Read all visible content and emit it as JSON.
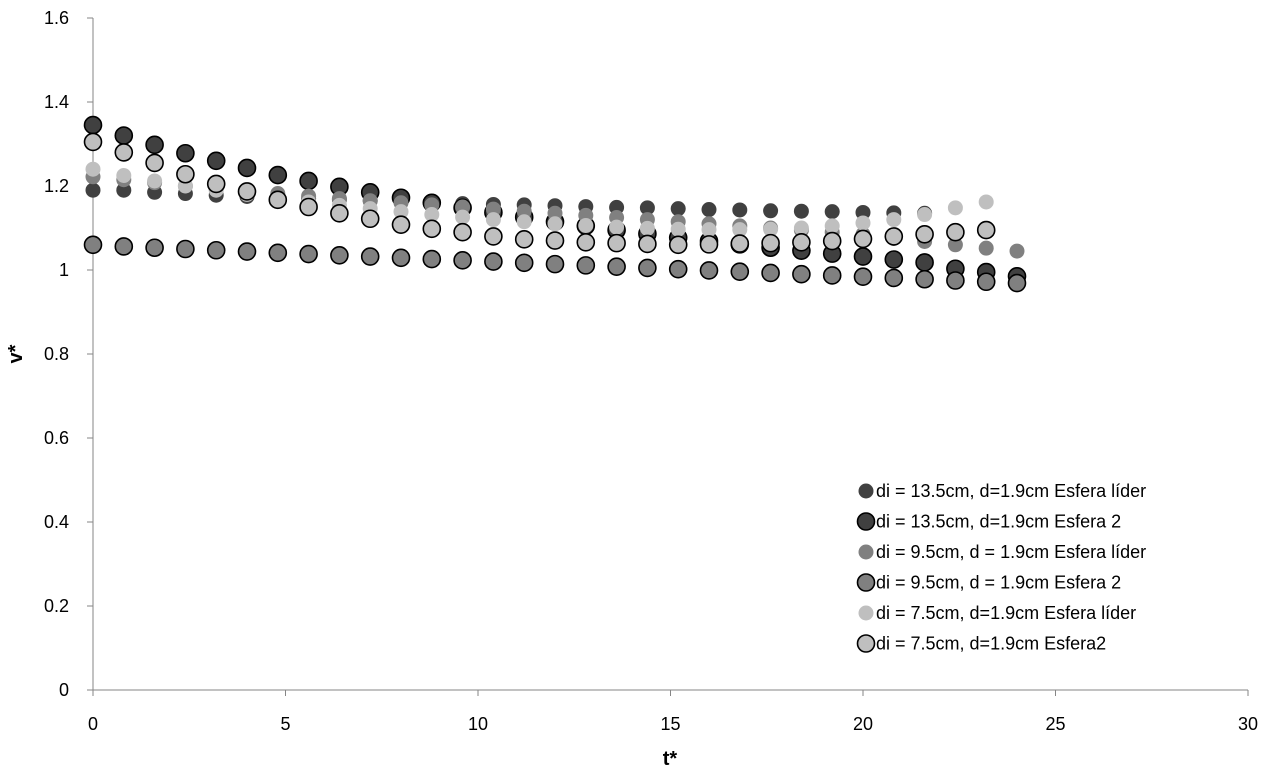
{
  "chart_data": {
    "type": "scatter",
    "xlabel": "t*",
    "ylabel": "v*",
    "xlim": [
      0,
      30
    ],
    "ylim": [
      0,
      1.6
    ],
    "xticks": [
      0,
      5,
      10,
      15,
      20,
      25,
      30
    ],
    "yticks": [
      0,
      0.2,
      0.4,
      0.6,
      0.8,
      1,
      1.2,
      1.4,
      1.6
    ],
    "ytick_labels": [
      "0",
      "0.2",
      "0.4",
      "0.6",
      "0.8",
      "1",
      "1.2",
      "1.4",
      "1.6"
    ],
    "grid": false,
    "legend_position": "bottom-right",
    "series": [
      {
        "name": "di = 13.5cm, d=1.9cm Esfera líder",
        "fill": "#404040",
        "outline": false,
        "points": [
          [
            0,
            1.19
          ],
          [
            0.8,
            1.19
          ],
          [
            1.6,
            1.185
          ],
          [
            2.4,
            1.182
          ],
          [
            3.2,
            1.178
          ],
          [
            4,
            1.175
          ],
          [
            4.8,
            1.172
          ],
          [
            5.6,
            1.17
          ],
          [
            6.4,
            1.168
          ],
          [
            7.2,
            1.165
          ],
          [
            8,
            1.163
          ],
          [
            8.8,
            1.16
          ],
          [
            9.6,
            1.158
          ],
          [
            10.4,
            1.156
          ],
          [
            11.2,
            1.155
          ],
          [
            12,
            1.153
          ],
          [
            12.8,
            1.151
          ],
          [
            13.6,
            1.149
          ],
          [
            14.4,
            1.148
          ],
          [
            15.2,
            1.146
          ],
          [
            16,
            1.144
          ],
          [
            16.8,
            1.143
          ],
          [
            17.6,
            1.141
          ],
          [
            18.4,
            1.14
          ],
          [
            19.2,
            1.139
          ],
          [
            20,
            1.137
          ],
          [
            20.8,
            1.136
          ],
          [
            21.6,
            1.135
          ]
        ]
      },
      {
        "name": "di = 13.5cm, d=1.9cm Esfera 2",
        "fill": "#404040",
        "outline": true,
        "points": [
          [
            0,
            1.345
          ],
          [
            0.8,
            1.32
          ],
          [
            1.6,
            1.298
          ],
          [
            2.4,
            1.278
          ],
          [
            3.2,
            1.26
          ],
          [
            4,
            1.243
          ],
          [
            4.8,
            1.226
          ],
          [
            5.6,
            1.212
          ],
          [
            6.4,
            1.198
          ],
          [
            7.2,
            1.185
          ],
          [
            8,
            1.172
          ],
          [
            8.8,
            1.16
          ],
          [
            9.6,
            1.148
          ],
          [
            10.4,
            1.137
          ],
          [
            11.2,
            1.126
          ],
          [
            12,
            1.115
          ],
          [
            12.8,
            1.105
          ],
          [
            13.6,
            1.095
          ],
          [
            14.4,
            1.086
          ],
          [
            15.2,
            1.077
          ],
          [
            16,
            1.069
          ],
          [
            16.8,
            1.061
          ],
          [
            17.6,
            1.053
          ],
          [
            18.4,
            1.046
          ],
          [
            19.2,
            1.039
          ],
          [
            20,
            1.032
          ],
          [
            20.8,
            1.025
          ],
          [
            21.6,
            1.018
          ],
          [
            22.4,
            1.003
          ],
          [
            23.2,
            0.995
          ],
          [
            24,
            0.985
          ]
        ]
      },
      {
        "name": "di = 9.5cm, d = 1.9cm Esfera líder",
        "fill": "#808080",
        "outline": false,
        "points": [
          [
            0,
            1.222
          ],
          [
            0.8,
            1.215
          ],
          [
            1.6,
            1.208
          ],
          [
            2.4,
            1.2
          ],
          [
            3.2,
            1.194
          ],
          [
            4,
            1.188
          ],
          [
            4.8,
            1.182
          ],
          [
            5.6,
            1.176
          ],
          [
            6.4,
            1.17
          ],
          [
            7.2,
            1.165
          ],
          [
            8,
            1.16
          ],
          [
            8.8,
            1.155
          ],
          [
            9.6,
            1.15
          ],
          [
            10.4,
            1.145
          ],
          [
            11.2,
            1.14
          ],
          [
            12,
            1.135
          ],
          [
            12.8,
            1.13
          ],
          [
            13.6,
            1.125
          ],
          [
            14.4,
            1.12
          ],
          [
            15.2,
            1.115
          ],
          [
            16,
            1.11
          ],
          [
            16.8,
            1.105
          ],
          [
            17.6,
            1.1
          ],
          [
            18.4,
            1.095
          ],
          [
            19.2,
            1.09
          ],
          [
            20,
            1.085
          ],
          [
            20.8,
            1.075
          ],
          [
            21.6,
            1.068
          ],
          [
            22.4,
            1.06
          ],
          [
            23.2,
            1.052
          ],
          [
            24,
            1.045
          ]
        ]
      },
      {
        "name": "di = 9.5cm, d = 1.9cm Esfera 2",
        "fill": "#808080",
        "outline": true,
        "points": [
          [
            0,
            1.06
          ],
          [
            0.8,
            1.056
          ],
          [
            1.6,
            1.053
          ],
          [
            2.4,
            1.05
          ],
          [
            3.2,
            1.047
          ],
          [
            4,
            1.044
          ],
          [
            4.8,
            1.041
          ],
          [
            5.6,
            1.038
          ],
          [
            6.4,
            1.035
          ],
          [
            7.2,
            1.032
          ],
          [
            8,
            1.029
          ],
          [
            8.8,
            1.026
          ],
          [
            9.6,
            1.023
          ],
          [
            10.4,
            1.02
          ],
          [
            11.2,
            1.017
          ],
          [
            12,
            1.014
          ],
          [
            12.8,
            1.011
          ],
          [
            13.6,
            1.008
          ],
          [
            14.4,
            1.005
          ],
          [
            15.2,
            1.002
          ],
          [
            16,
            0.999
          ],
          [
            16.8,
            0.996
          ],
          [
            17.6,
            0.993
          ],
          [
            18.4,
            0.99
          ],
          [
            19.2,
            0.987
          ],
          [
            20,
            0.984
          ],
          [
            20.8,
            0.981
          ],
          [
            21.6,
            0.978
          ],
          [
            22.4,
            0.975
          ],
          [
            23.2,
            0.972
          ],
          [
            24,
            0.969
          ]
        ]
      },
      {
        "name": "di = 7.5cm, d=1.9cm Esfera líder",
        "fill": "#bfbfbf",
        "outline": false,
        "points": [
          [
            0,
            1.24
          ],
          [
            0.8,
            1.225
          ],
          [
            1.6,
            1.212
          ],
          [
            2.4,
            1.2
          ],
          [
            3.2,
            1.19
          ],
          [
            4,
            1.18
          ],
          [
            4.8,
            1.17
          ],
          [
            5.6,
            1.162
          ],
          [
            6.4,
            1.154
          ],
          [
            7.2,
            1.146
          ],
          [
            8,
            1.139
          ],
          [
            8.8,
            1.132
          ],
          [
            9.6,
            1.126
          ],
          [
            10.4,
            1.12
          ],
          [
            11.2,
            1.115
          ],
          [
            12,
            1.11
          ],
          [
            12.8,
            1.106
          ],
          [
            13.6,
            1.102
          ],
          [
            14.4,
            1.099
          ],
          [
            15.2,
            1.097
          ],
          [
            16,
            1.096
          ],
          [
            16.8,
            1.096
          ],
          [
            17.6,
            1.097
          ],
          [
            18.4,
            1.1
          ],
          [
            19.2,
            1.105
          ],
          [
            20,
            1.112
          ],
          [
            20.8,
            1.12
          ],
          [
            21.6,
            1.132
          ],
          [
            22.4,
            1.148
          ],
          [
            23.2,
            1.162
          ]
        ]
      },
      {
        "name": "di = 7.5cm, d=1.9cm Esfera2",
        "fill": "#bfbfbf",
        "outline": true,
        "points": [
          [
            0,
            1.305
          ],
          [
            0.8,
            1.28
          ],
          [
            1.6,
            1.255
          ],
          [
            2.4,
            1.228
          ],
          [
            3.2,
            1.205
          ],
          [
            4,
            1.187
          ],
          [
            4.8,
            1.167
          ],
          [
            5.6,
            1.15
          ],
          [
            6.4,
            1.135
          ],
          [
            7.2,
            1.122
          ],
          [
            8,
            1.108
          ],
          [
            8.8,
            1.098
          ],
          [
            9.6,
            1.09
          ],
          [
            10.4,
            1.08
          ],
          [
            11.2,
            1.073
          ],
          [
            12,
            1.07
          ],
          [
            12.8,
            1.066
          ],
          [
            13.6,
            1.064
          ],
          [
            14.4,
            1.062
          ],
          [
            15.2,
            1.06
          ],
          [
            16,
            1.061
          ],
          [
            16.8,
            1.063
          ],
          [
            17.6,
            1.064
          ],
          [
            18.4,
            1.066
          ],
          [
            19.2,
            1.069
          ],
          [
            20,
            1.074
          ],
          [
            20.8,
            1.08
          ],
          [
            21.6,
            1.085
          ],
          [
            22.4,
            1.09
          ],
          [
            23.2,
            1.095
          ]
        ]
      }
    ]
  }
}
